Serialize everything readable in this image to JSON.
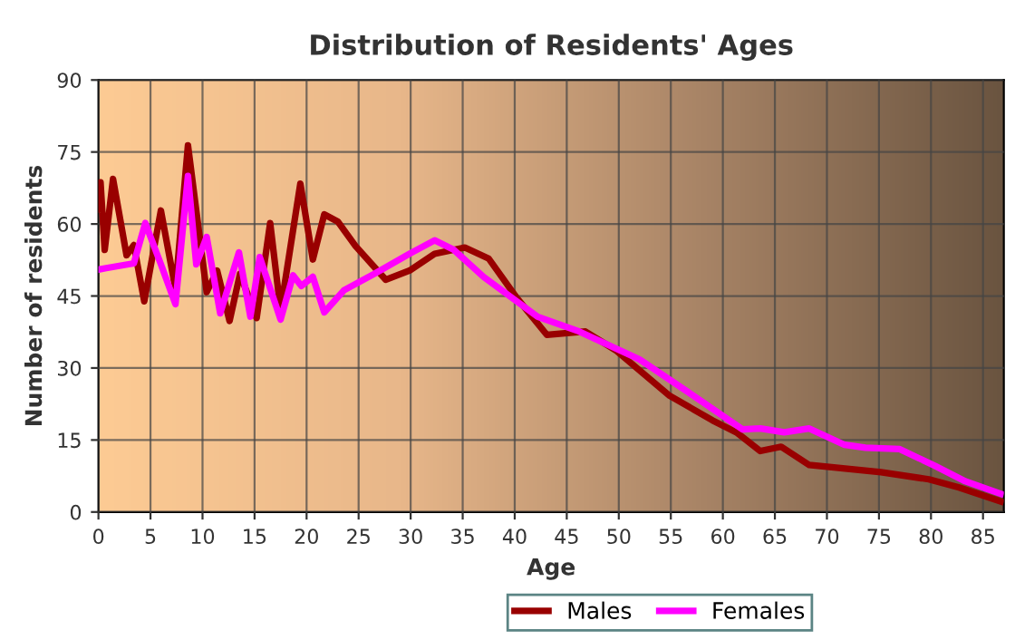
{
  "chart_data": {
    "type": "line",
    "title": "Distribution of Residents' Ages",
    "xlabel": "Age",
    "ylabel": "Number of residents",
    "xlim": [
      0,
      87
    ],
    "ylim": [
      0,
      90
    ],
    "xticks": [
      0,
      5,
      10,
      15,
      20,
      25,
      30,
      35,
      40,
      45,
      50,
      55,
      60,
      65,
      70,
      75,
      80,
      85
    ],
    "yticks": [
      0,
      15,
      30,
      45,
      60,
      75,
      90
    ],
    "grid": true,
    "legend": "bottom",
    "line_style": "solid",
    "series": [
      {
        "name": "Males",
        "color": "#990000",
        "x": [
          0,
          0.2,
          0.6,
          1.4,
          2.7,
          3.4,
          4.4,
          6.0,
          7.4,
          8.6,
          10.4,
          11.4,
          12.6,
          13.6,
          15.2,
          16.5,
          17.5,
          19.4,
          20.6,
          21.7,
          23,
          24.7,
          27.6,
          29.9,
          32.3,
          35.2,
          37.5,
          40.2,
          43.1,
          46.8,
          49.7,
          54.9,
          59,
          61.3,
          63.6,
          65.6,
          68.3,
          75.2,
          79.8,
          82.7,
          86.7
        ],
        "values": [
          63,
          68.7,
          54.6,
          69.4,
          53.5,
          55.6,
          43.9,
          62.8,
          46.5,
          76.4,
          45.8,
          50.3,
          39.8,
          49.6,
          40.4,
          60.2,
          42,
          68.4,
          52.6,
          62,
          60.5,
          55.4,
          48.4,
          50.3,
          53.8,
          55.1,
          52.8,
          44.6,
          36.9,
          37.6,
          33.7,
          24.2,
          19.1,
          16.6,
          12.7,
          13.6,
          9.8,
          8.3,
          6.8,
          5.1,
          2.2
        ]
      },
      {
        "name": "Females",
        "color": "#ff00ff",
        "x": [
          0,
          0.75,
          3.4,
          4.5,
          6,
          7.4,
          8.6,
          9.4,
          10.4,
          11.7,
          13.5,
          14.6,
          15.5,
          17.5,
          18.7,
          19.5,
          20.6,
          21.7,
          23.6,
          26.5,
          29.9,
          32.3,
          34.1,
          37,
          42.2,
          46.2,
          52,
          57.2,
          61.9,
          63.6,
          65.9,
          68.3,
          71.7,
          73.7,
          77,
          80.4,
          83.3,
          86.7
        ],
        "values": [
          50.5,
          50.8,
          51.8,
          60.2,
          51.6,
          43.3,
          70,
          51.6,
          57.3,
          41.4,
          54.1,
          40.7,
          53.1,
          40.1,
          49.3,
          47.1,
          49,
          41.6,
          46.2,
          49.6,
          53.8,
          56.6,
          54.7,
          49,
          40.7,
          37.6,
          31.8,
          24.2,
          17.2,
          17.4,
          16.6,
          17.4,
          14,
          13.4,
          13.1,
          9.6,
          6.4,
          3.8
        ]
      }
    ]
  }
}
